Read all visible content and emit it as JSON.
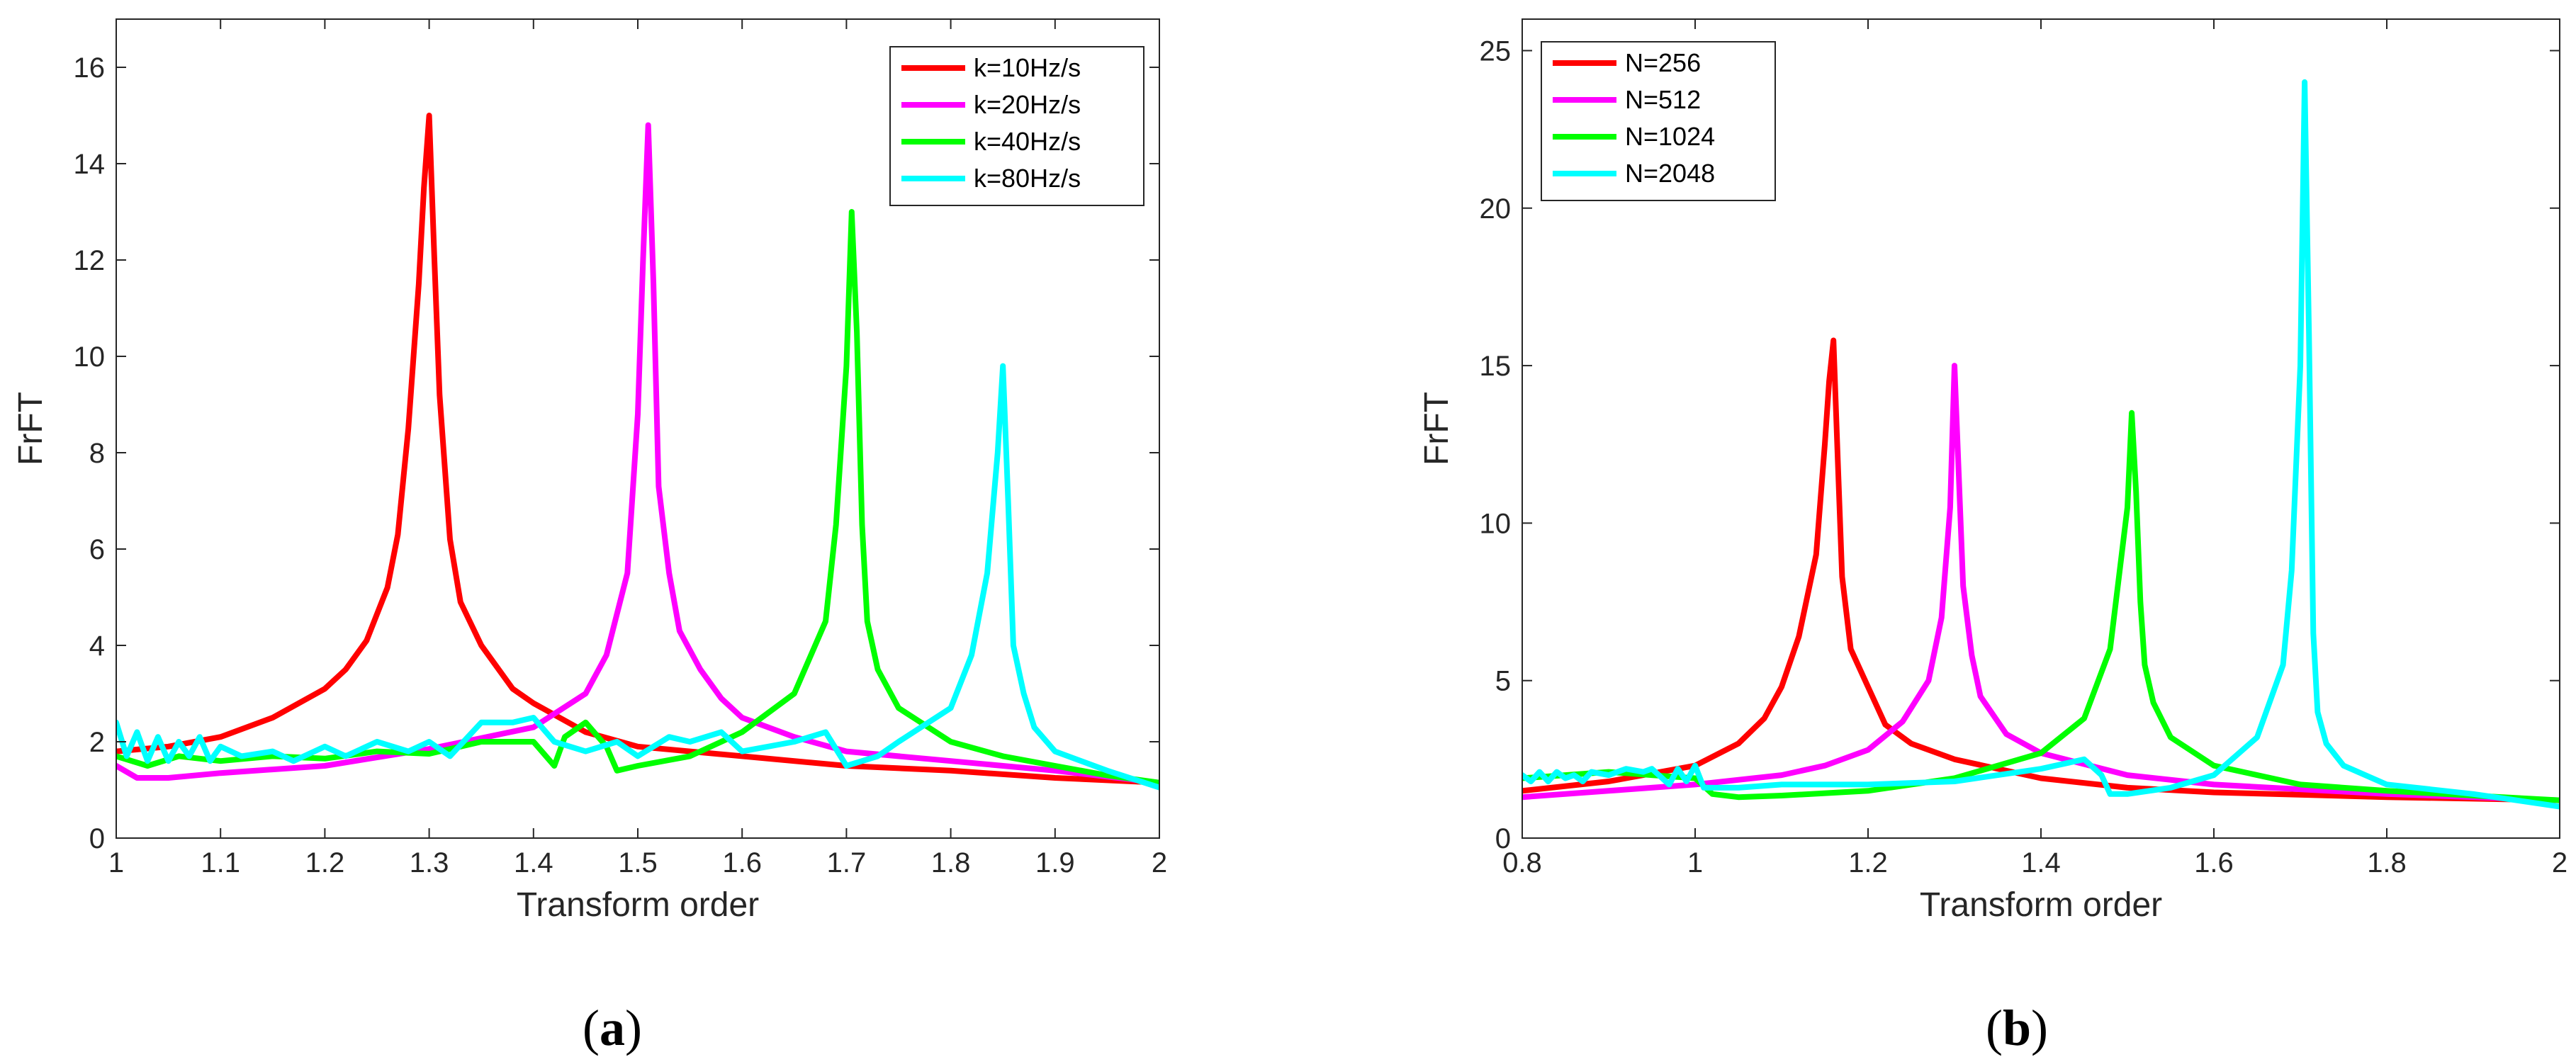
{
  "chart_data": [
    {
      "panel": "a",
      "type": "line",
      "caption_open": "(",
      "caption_letter": "a",
      "caption_close": ")",
      "xlabel": "Transform order",
      "ylabel": "FrFT",
      "xlim": [
        1,
        2
      ],
      "ylim": [
        0,
        17
      ],
      "xticks": [
        1,
        1.1,
        1.2,
        1.3,
        1.4,
        1.5,
        1.6,
        1.7,
        1.8,
        1.9,
        2
      ],
      "xtick_labels": [
        "1",
        "1.1",
        "1.2",
        "1.3",
        "1.4",
        "1.5",
        "1.6",
        "1.7",
        "1.8",
        "1.9",
        "2"
      ],
      "yticks": [
        0,
        2,
        4,
        6,
        8,
        10,
        12,
        14,
        16
      ],
      "ytick_labels": [
        "0",
        "2",
        "4",
        "6",
        "8",
        "10",
        "12",
        "14",
        "16"
      ],
      "legend_position": "top-right",
      "series": [
        {
          "name": "k=10Hz/s",
          "color": "#ff0000",
          "x": [
            1.0,
            1.05,
            1.1,
            1.15,
            1.2,
            1.22,
            1.24,
            1.26,
            1.27,
            1.28,
            1.29,
            1.295,
            1.3,
            1.305,
            1.31,
            1.32,
            1.33,
            1.35,
            1.38,
            1.4,
            1.45,
            1.5,
            1.6,
            1.7,
            1.8,
            1.9,
            2.0
          ],
          "y": [
            1.8,
            1.9,
            2.1,
            2.5,
            3.1,
            3.5,
            4.1,
            5.2,
            6.3,
            8.5,
            11.5,
            13.5,
            15.0,
            12.0,
            9.2,
            6.2,
            4.9,
            4.0,
            3.1,
            2.8,
            2.2,
            1.9,
            1.7,
            1.5,
            1.4,
            1.25,
            1.15
          ]
        },
        {
          "name": "k=20Hz/s",
          "color": "#ff00ff",
          "x": [
            1.0,
            1.02,
            1.05,
            1.1,
            1.2,
            1.3,
            1.4,
            1.45,
            1.47,
            1.49,
            1.5,
            1.505,
            1.51,
            1.515,
            1.52,
            1.53,
            1.54,
            1.56,
            1.58,
            1.6,
            1.65,
            1.7,
            1.8,
            1.9,
            2.0
          ],
          "y": [
            1.5,
            1.25,
            1.25,
            1.35,
            1.5,
            1.85,
            2.3,
            3.0,
            3.8,
            5.5,
            8.8,
            12.0,
            14.8,
            11.5,
            7.3,
            5.5,
            4.3,
            3.5,
            2.9,
            2.5,
            2.1,
            1.8,
            1.6,
            1.4,
            1.15
          ]
        },
        {
          "name": "k=40Hz/s",
          "color": "#00ff00",
          "x": [
            1.0,
            1.03,
            1.06,
            1.1,
            1.15,
            1.2,
            1.25,
            1.3,
            1.35,
            1.4,
            1.42,
            1.43,
            1.45,
            1.47,
            1.48,
            1.5,
            1.55,
            1.6,
            1.65,
            1.68,
            1.69,
            1.7,
            1.705,
            1.71,
            1.715,
            1.72,
            1.73,
            1.75,
            1.8,
            1.85,
            1.9,
            1.95,
            2.0
          ],
          "y": [
            1.7,
            1.5,
            1.7,
            1.6,
            1.7,
            1.65,
            1.8,
            1.75,
            2.0,
            2.0,
            1.5,
            2.1,
            2.4,
            1.9,
            1.4,
            1.5,
            1.7,
            2.2,
            3.0,
            4.5,
            6.5,
            9.8,
            13.0,
            10.5,
            6.5,
            4.5,
            3.5,
            2.7,
            2.0,
            1.7,
            1.5,
            1.3,
            1.15
          ]
        },
        {
          "name": "k=80Hz/s",
          "color": "#00ffff",
          "x": [
            1.0,
            1.01,
            1.02,
            1.03,
            1.04,
            1.05,
            1.06,
            1.07,
            1.08,
            1.09,
            1.1,
            1.12,
            1.15,
            1.17,
            1.2,
            1.22,
            1.25,
            1.28,
            1.3,
            1.32,
            1.35,
            1.38,
            1.4,
            1.42,
            1.45,
            1.48,
            1.5,
            1.53,
            1.55,
            1.58,
            1.6,
            1.65,
            1.68,
            1.7,
            1.73,
            1.75,
            1.8,
            1.82,
            1.835,
            1.845,
            1.85,
            1.855,
            1.86,
            1.87,
            1.88,
            1.9,
            1.95,
            2.0
          ],
          "y": [
            2.4,
            1.7,
            2.2,
            1.6,
            2.1,
            1.6,
            2.0,
            1.7,
            2.1,
            1.6,
            1.9,
            1.7,
            1.8,
            1.6,
            1.9,
            1.7,
            2.0,
            1.8,
            2.0,
            1.7,
            2.4,
            2.4,
            2.5,
            2.0,
            1.8,
            2.0,
            1.7,
            2.1,
            2.0,
            2.2,
            1.8,
            2.0,
            2.2,
            1.5,
            1.7,
            2.0,
            2.7,
            3.8,
            5.5,
            8.0,
            9.8,
            7.0,
            4.0,
            3.0,
            2.3,
            1.8,
            1.4,
            1.05
          ]
        }
      ]
    },
    {
      "panel": "b",
      "type": "line",
      "caption_open": "(",
      "caption_letter": "b",
      "caption_close": ")",
      "xlabel": "Transform order",
      "ylabel": "FrFT",
      "xlim": [
        0.8,
        2
      ],
      "ylim": [
        0,
        26
      ],
      "xticks": [
        0.8,
        1,
        1.2,
        1.4,
        1.6,
        1.8,
        2
      ],
      "xtick_labels": [
        "0.8",
        "1",
        "1.2",
        "1.4",
        "1.6",
        "1.8",
        "2"
      ],
      "yticks": [
        0,
        5,
        10,
        15,
        20,
        25
      ],
      "ytick_labels": [
        "0",
        "5",
        "10",
        "15",
        "20",
        "25"
      ],
      "legend_position": "top-left",
      "series": [
        {
          "name": "N=256",
          "color": "#ff0000",
          "x": [
            0.8,
            0.9,
            1.0,
            1.05,
            1.08,
            1.1,
            1.12,
            1.14,
            1.15,
            1.155,
            1.16,
            1.165,
            1.17,
            1.18,
            1.2,
            1.22,
            1.25,
            1.3,
            1.4,
            1.5,
            1.6,
            1.8,
            2.0
          ],
          "y": [
            1.5,
            1.8,
            2.3,
            3.0,
            3.8,
            4.8,
            6.4,
            9.0,
            12.5,
            14.5,
            15.8,
            12.0,
            8.3,
            6.0,
            4.8,
            3.6,
            3.0,
            2.5,
            1.9,
            1.6,
            1.45,
            1.3,
            1.2
          ]
        },
        {
          "name": "N=512",
          "color": "#ff00ff",
          "x": [
            0.8,
            0.9,
            1.0,
            1.1,
            1.15,
            1.2,
            1.24,
            1.27,
            1.285,
            1.295,
            1.3,
            1.305,
            1.31,
            1.32,
            1.33,
            1.36,
            1.4,
            1.5,
            1.6,
            1.8,
            2.0
          ],
          "y": [
            1.3,
            1.5,
            1.7,
            2.0,
            2.3,
            2.8,
            3.7,
            5.0,
            7.0,
            10.5,
            15.0,
            11.5,
            8.0,
            5.8,
            4.5,
            3.3,
            2.7,
            2.0,
            1.7,
            1.4,
            1.2
          ]
        },
        {
          "name": "N=1024",
          "color": "#00ff00",
          "x": [
            0.8,
            0.85,
            0.9,
            0.95,
            1.0,
            1.02,
            1.05,
            1.1,
            1.2,
            1.3,
            1.4,
            1.45,
            1.48,
            1.5,
            1.505,
            1.51,
            1.515,
            1.52,
            1.53,
            1.55,
            1.6,
            1.7,
            1.8,
            1.9,
            2.0
          ],
          "y": [
            1.9,
            2.0,
            2.1,
            2.0,
            1.9,
            1.4,
            1.3,
            1.35,
            1.5,
            1.9,
            2.7,
            3.8,
            6.0,
            10.5,
            13.5,
            11.0,
            7.5,
            5.5,
            4.3,
            3.2,
            2.3,
            1.7,
            1.5,
            1.35,
            1.2
          ]
        },
        {
          "name": "N=2048",
          "color": "#00ffff",
          "x": [
            0.8,
            0.81,
            0.82,
            0.83,
            0.84,
            0.85,
            0.86,
            0.87,
            0.88,
            0.9,
            0.92,
            0.94,
            0.95,
            0.97,
            0.98,
            0.99,
            1.0,
            1.01,
            1.02,
            1.05,
            1.1,
            1.2,
            1.3,
            1.4,
            1.45,
            1.47,
            1.48,
            1.5,
            1.55,
            1.6,
            1.65,
            1.68,
            1.69,
            1.7,
            1.705,
            1.71,
            1.715,
            1.72,
            1.73,
            1.75,
            1.8,
            1.9,
            2.0
          ],
          "y": [
            2.0,
            1.8,
            2.1,
            1.8,
            2.1,
            1.9,
            2.0,
            1.8,
            2.1,
            2.0,
            2.2,
            2.1,
            2.2,
            1.7,
            2.2,
            1.8,
            2.3,
            1.6,
            1.6,
            1.6,
            1.7,
            1.7,
            1.8,
            2.2,
            2.5,
            2.0,
            1.4,
            1.4,
            1.6,
            2.0,
            3.2,
            5.5,
            8.5,
            15.0,
            24.0,
            16.0,
            6.5,
            4.0,
            3.0,
            2.3,
            1.7,
            1.4,
            1.0
          ]
        }
      ]
    }
  ]
}
